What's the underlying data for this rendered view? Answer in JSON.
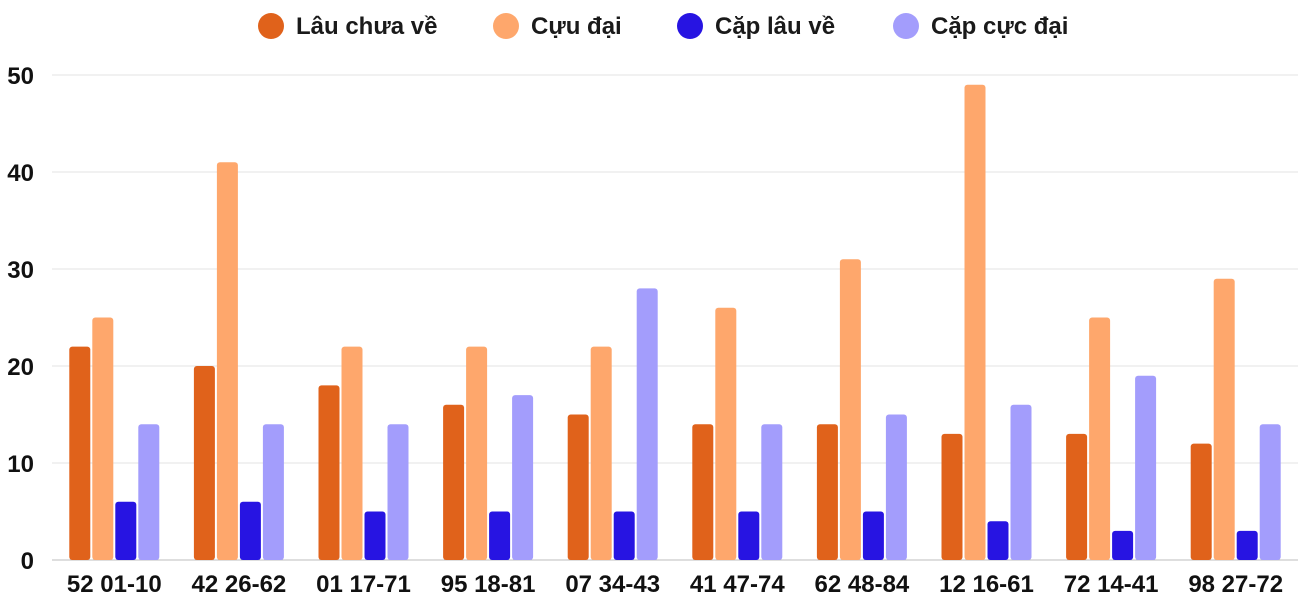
{
  "chart_data": {
    "type": "bar",
    "categories": [
      "52 01-10",
      "42 26-62",
      "01 17-71",
      "95 18-81",
      "07 34-43",
      "41 47-74",
      "62 48-84",
      "12 16-61",
      "72 14-41",
      "98 27-72"
    ],
    "series": [
      {
        "name": "Lâu chưa về",
        "color": "#e0621b",
        "values": [
          22,
          20,
          18,
          16,
          15,
          14,
          14,
          13,
          13,
          12
        ]
      },
      {
        "name": "Cựu đại",
        "color": "#fea76c",
        "values": [
          25,
          41,
          22,
          22,
          22,
          26,
          31,
          49,
          25,
          29
        ]
      },
      {
        "name": "Cặp lâu về",
        "color": "#2714e2",
        "values": [
          6,
          6,
          5,
          5,
          5,
          5,
          5,
          4,
          3,
          3
        ]
      },
      {
        "name": "Cặp cực đại",
        "color": "#a39dfc",
        "values": [
          14,
          14,
          14,
          17,
          28,
          14,
          15,
          16,
          19,
          14
        ]
      }
    ],
    "ylim": [
      0,
      50
    ],
    "yticks": [
      0,
      10,
      20,
      30,
      40,
      50
    ],
    "grid": true,
    "legend_position": "top-center"
  }
}
